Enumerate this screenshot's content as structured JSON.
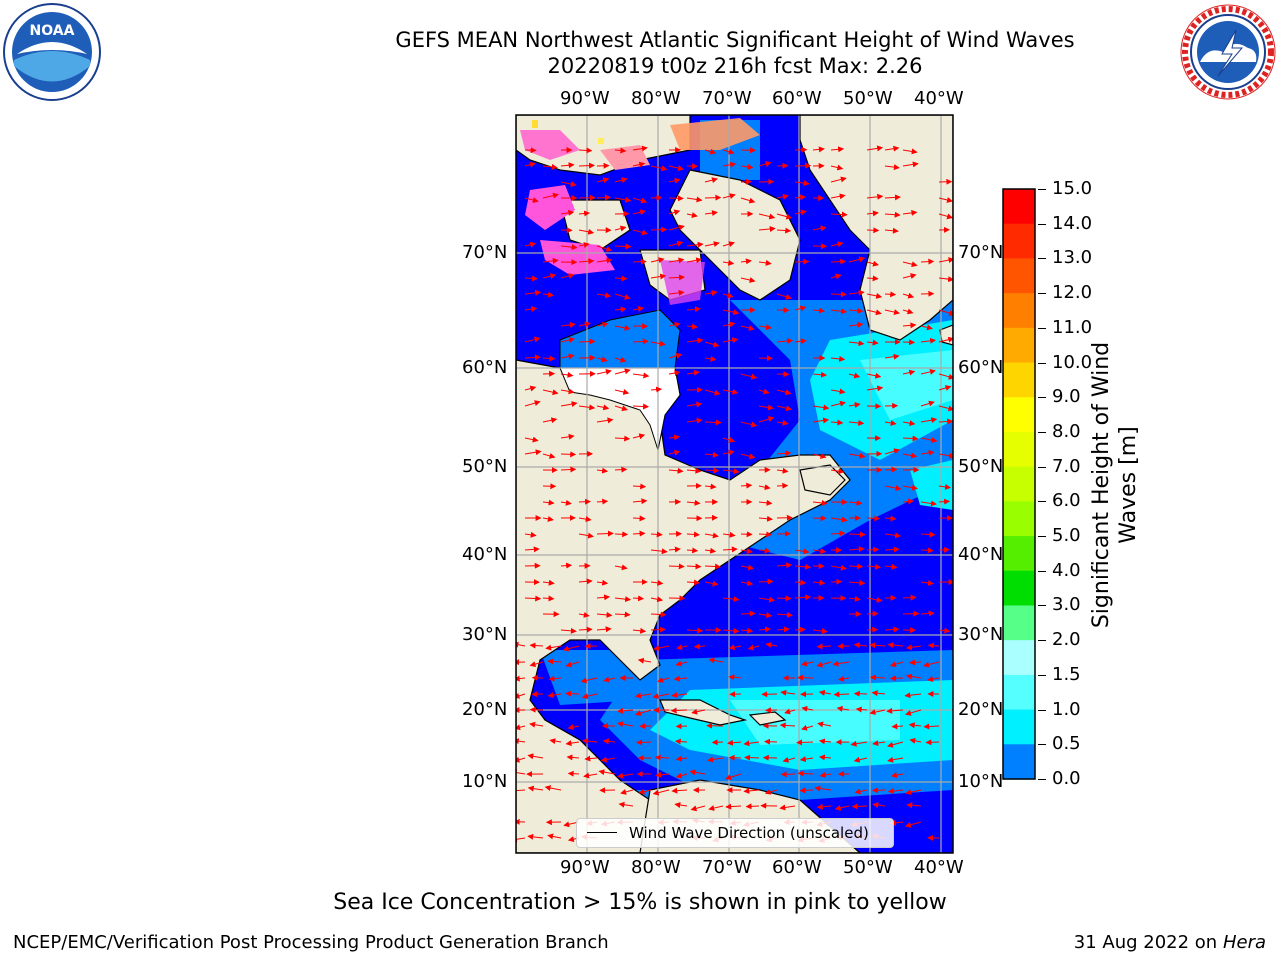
{
  "header": {
    "title_line1": "GEFS MEAN Northwest Atlantic Significant Height of Wind Waves",
    "title_line2": "20220819 t00z 216h fcst   Max: 2.26"
  },
  "logos": {
    "left": "NOAA",
    "left_icon": "noaa-logo-icon",
    "right_icon": "nws-logo-icon"
  },
  "map": {
    "lon_labels": [
      "90°W",
      "80°W",
      "70°W",
      "60°W",
      "50°W",
      "40°W"
    ],
    "lat_labels": [
      "70°N",
      "60°N",
      "50°N",
      "40°N",
      "30°N",
      "20°N",
      "10°N"
    ],
    "legend_label": "Wind Wave Direction (unscaled)",
    "arrow_color": "#ff0000",
    "land_color": "#efedd9"
  },
  "colorbar": {
    "label_line1": "Significant Height of Wind",
    "label_line2": "Waves [m]",
    "ticks": [
      "15.0",
      "14.0",
      "13.0",
      "12.0",
      "11.0",
      "10.0",
      "9.0",
      "8.0",
      "7.0",
      "6.0",
      "5.0",
      "4.0",
      "3.0",
      "2.0",
      "1.5",
      "1.0",
      "0.5",
      "0.0"
    ],
    "colors_top_to_bottom": [
      "#ff0000",
      "#ff2a00",
      "#ff5500",
      "#ff8000",
      "#ffaa00",
      "#ffd500",
      "#ffff00",
      "#e5ff00",
      "#c8ff00",
      "#99ff00",
      "#55ee00",
      "#00dd00",
      "#55ff88",
      "#aaffff",
      "#55ffff",
      "#00f0ff",
      "#0080ff",
      "#0000ff"
    ]
  },
  "caption": "Sea Ice Concentration > 15% is shown in pink to yellow",
  "footer": {
    "left": "NCEP/EMC/Verification Post Processing Product Generation Branch",
    "right_prefix": "31 Aug 2022 on",
    "right_host": "Hera"
  }
}
